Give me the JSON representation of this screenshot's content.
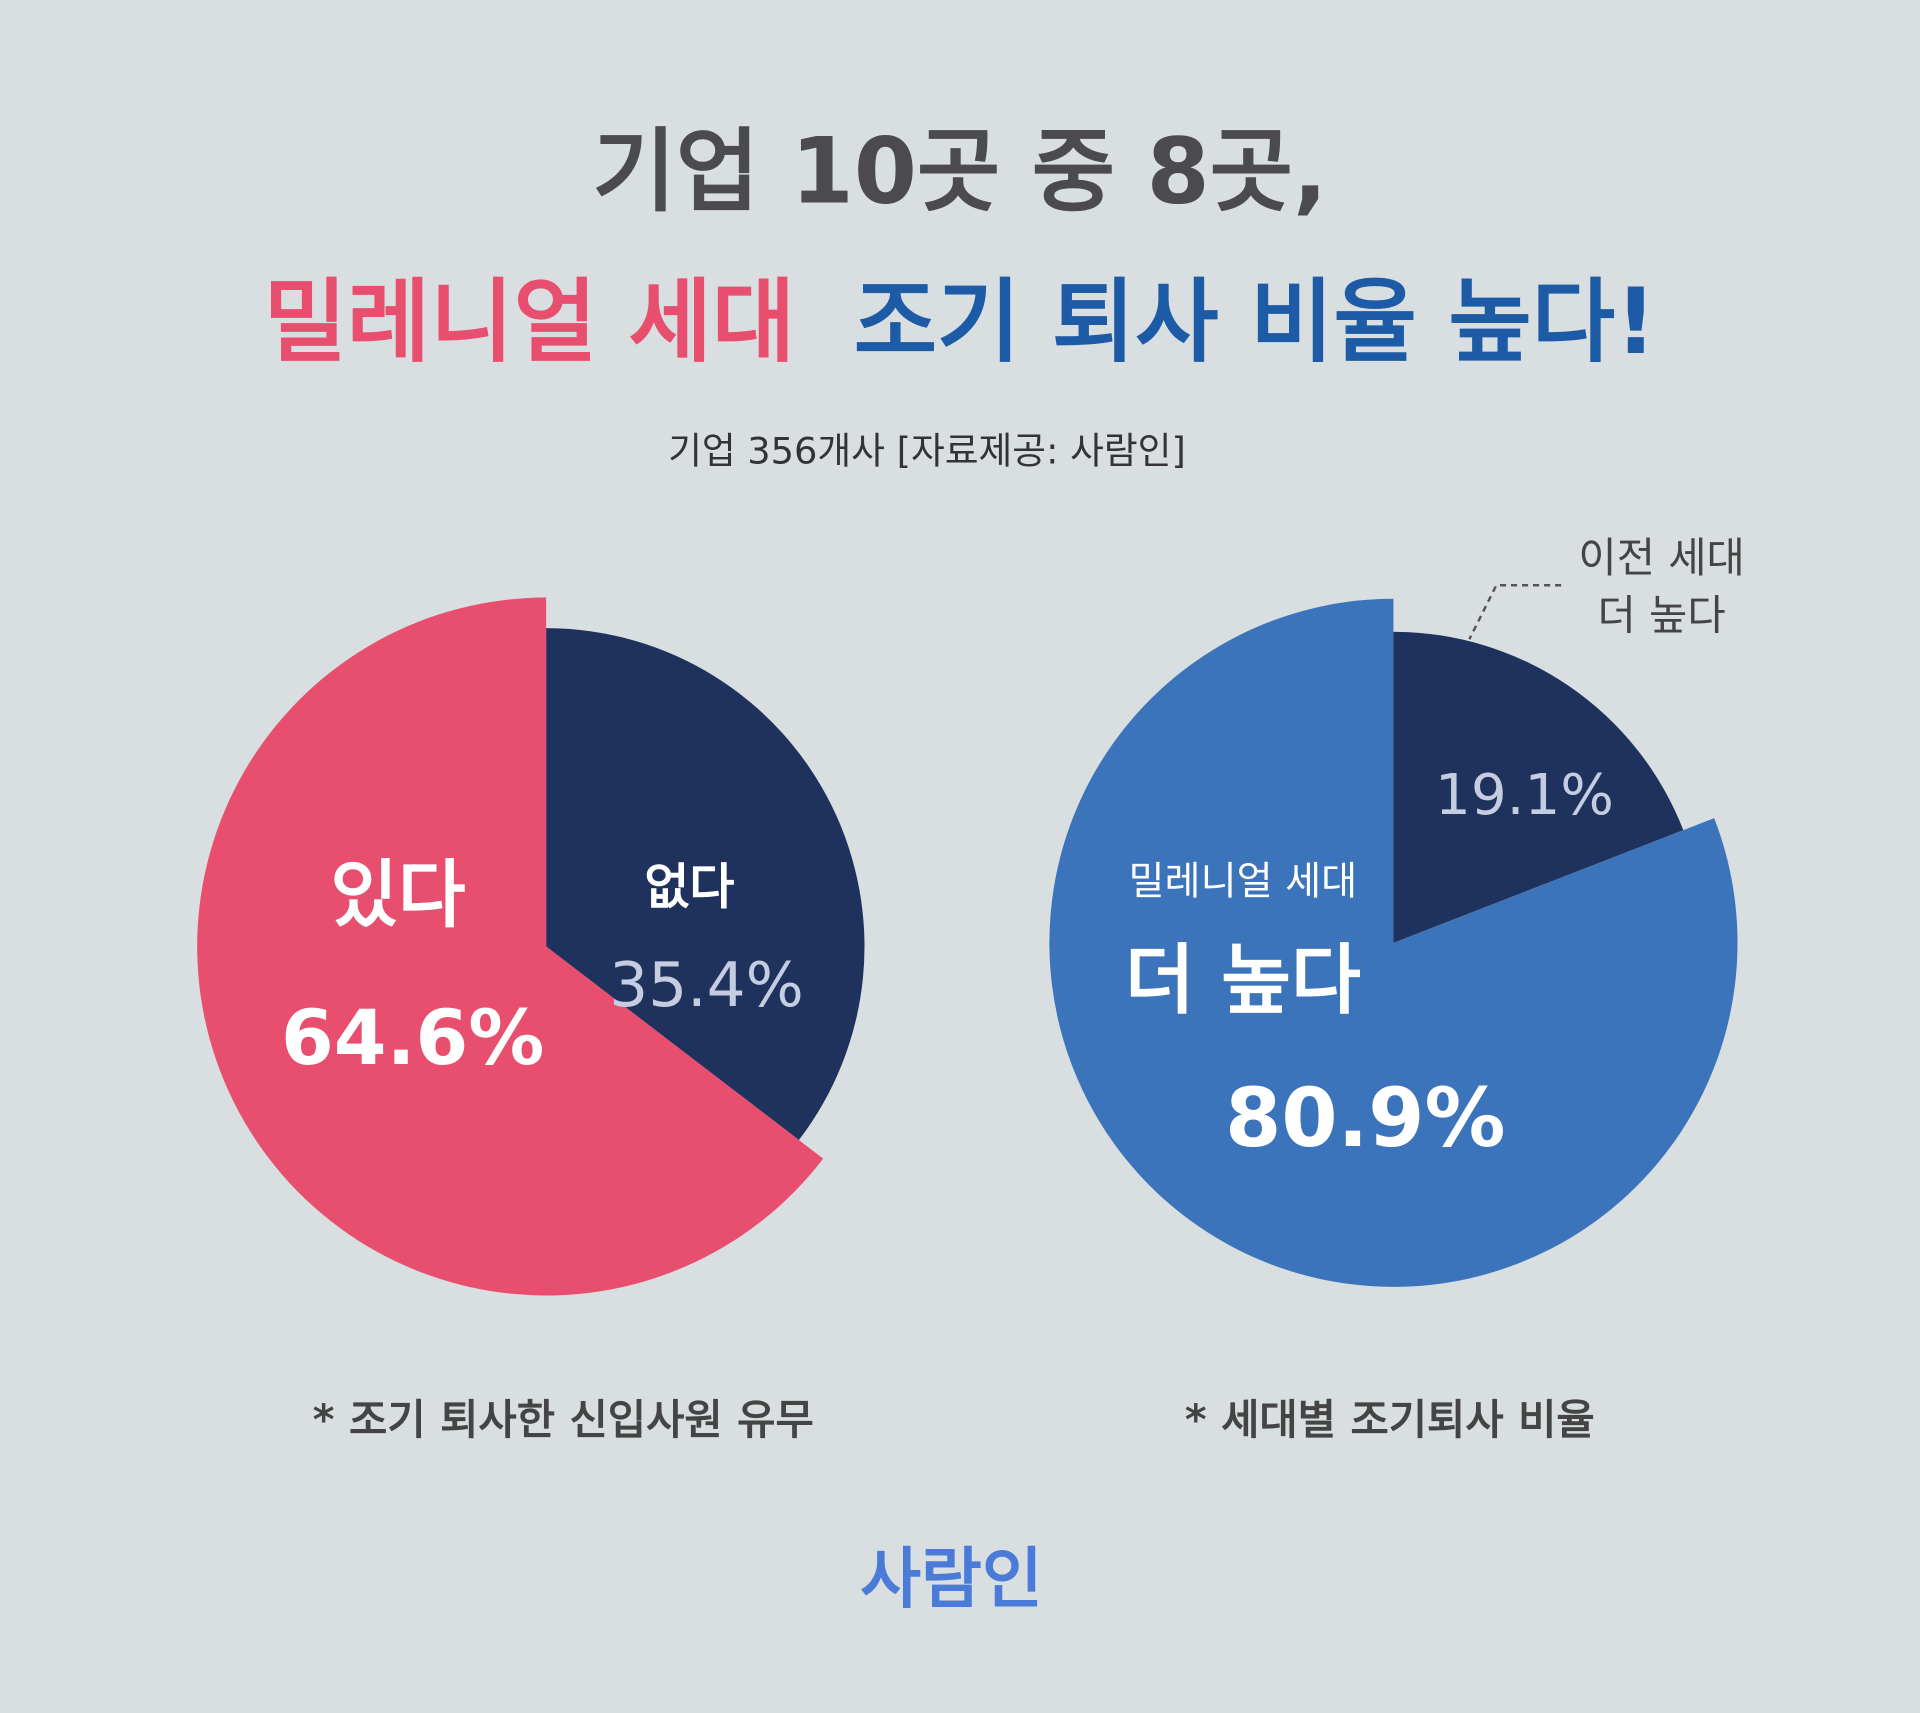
{
  "title": "기업 10곳 중 8곳,",
  "headline": [
    {
      "text": "밀레니얼 세대",
      "color": "#e84f6f"
    },
    {
      "text": "조기 퇴사 비율 높다!",
      "color": "#1d5ba6"
    }
  ],
  "subtitle": "기업 356개사  [자료제공: 사람인]",
  "brand": "사람인",
  "chart_data": [
    {
      "type": "pie",
      "categories": [
        [
          "있다"
        ],
        [
          "없다"
        ]
      ],
      "values": [
        64.6,
        35.4
      ],
      "value_labels": [
        "64.6%",
        "35.4%"
      ],
      "colors": [
        "#e84f6f",
        "#1f325d"
      ],
      "caption": "* 조기 퇴사한 신입사원 유무"
    },
    {
      "type": "pie",
      "categories": [
        [
          "밀레니얼 세대",
          "더 높다"
        ],
        [
          "이전 세대",
          "더 높다"
        ]
      ],
      "values": [
        80.9,
        19.1
      ],
      "value_labels": [
        "80.9%",
        "19.1%"
      ],
      "colors": [
        "#3b74bb",
        "#1f325d"
      ],
      "caption": "* 세대별 조기퇴사 비율"
    }
  ]
}
